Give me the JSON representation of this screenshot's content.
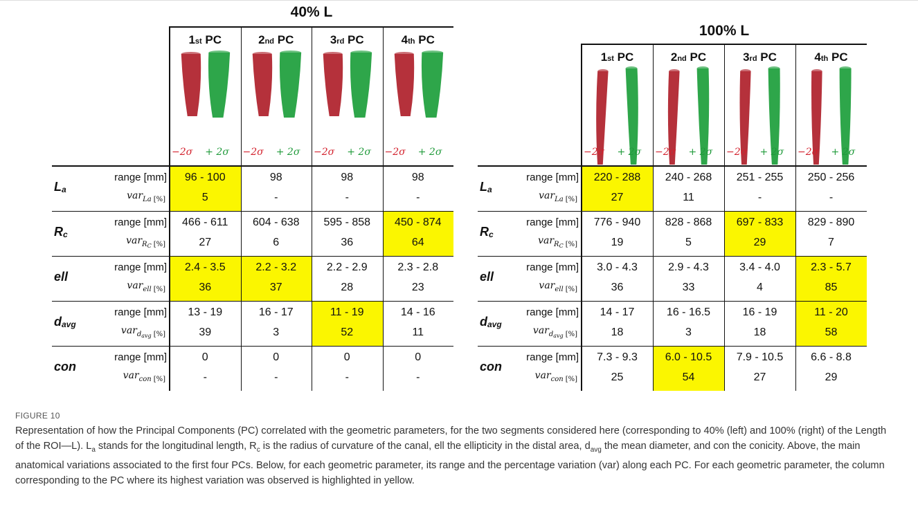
{
  "figure_label": "FIGURE 10",
  "caption": [
    {
      "text": "Representation of how the Principal Components (PC) correlated with the geometric parameters, for the two segments considered here (corresponding to 40% (left) and 100% (right) of the Length of the ROI—L). L"
    },
    {
      "text": "a",
      "sub": true
    },
    {
      "text": " stands for the longitudinal length, R"
    },
    {
      "text": "c",
      "sub": true
    },
    {
      "text": " is the radius of curvature of the canal, ell the ellipticity in the distal area, d"
    },
    {
      "text": "avg",
      "sub": true
    },
    {
      "text": " the mean diameter, and con the conicity. Above, the main anatomical variations associated to the first four PCs. Below, for each geometric parameter, its range and the percentage variation (var) along each PC. For each geometric parameter, the column corresponding to the PC where its highest variation was observed is highlighted in yellow."
    }
  ],
  "tables": [
    {
      "title": "40% L",
      "columns": [
        {
          "ordinal": "1",
          "suffix": "st",
          "label": "PC"
        },
        {
          "ordinal": "2",
          "suffix": "nd",
          "label": "PC"
        },
        {
          "ordinal": "3",
          "suffix": "rd",
          "label": "PC"
        },
        {
          "ordinal": "4",
          "suffix": "th",
          "label": "PC"
        }
      ],
      "sigma": [
        "−2σ",
        "+ 2σ"
      ],
      "parameters": [
        {
          "name": "L",
          "name_sub": "a",
          "range_label": "range [mm]",
          "var_label": {
            "text": "var",
            "sub": "La",
            "unit": "[%]"
          },
          "ranges": [
            "96 - 100",
            "98",
            "98",
            "98"
          ],
          "vars": [
            "5",
            "-",
            "-",
            "-"
          ],
          "highlight_columns": [
            0
          ]
        },
        {
          "name": "R",
          "name_sub": "c",
          "range_label": "range [mm]",
          "var_label": {
            "text": "var",
            "sub": "R",
            "sub2": "C",
            "unit": "[%]"
          },
          "ranges": [
            "466 - 611",
            "604 - 638",
            "595 - 858",
            "450 - 874"
          ],
          "vars": [
            "27",
            "6",
            "36",
            "64"
          ],
          "highlight_columns": [
            3
          ]
        },
        {
          "name": "ell",
          "range_label": "range [mm]",
          "var_label": {
            "text": "var",
            "sub": "ell",
            "unit": "[%]"
          },
          "ranges": [
            "2.4 - 3.5",
            "2.2 - 3.2",
            "2.2 - 2.9",
            "2.3 - 2.8"
          ],
          "vars": [
            "36",
            "37",
            "28",
            "23"
          ],
          "highlight_columns": [
            0,
            1
          ]
        },
        {
          "name": "d",
          "name_sub": "avg",
          "range_label": "range [mm]",
          "var_label": {
            "text": "var",
            "sub": "d",
            "sub2": "avg",
            "unit": "[%]"
          },
          "ranges": [
            "13 - 19",
            "16 - 17",
            "11 - 19",
            "14 - 16"
          ],
          "vars": [
            "39",
            "3",
            "52",
            "11"
          ],
          "highlight_columns": [
            2
          ]
        },
        {
          "name": "con",
          "range_label": "range [mm]",
          "var_label": {
            "text": "var",
            "sub": "con",
            "unit": "[%]"
          },
          "ranges": [
            "0",
            "0",
            "0",
            "0"
          ],
          "vars": [
            "-",
            "-",
            "-",
            "-"
          ],
          "highlight_columns": []
        }
      ]
    },
    {
      "title": "100% L",
      "columns": [
        {
          "ordinal": "1",
          "suffix": "st",
          "label": "PC"
        },
        {
          "ordinal": "2",
          "suffix": "nd",
          "label": "PC"
        },
        {
          "ordinal": "3",
          "suffix": "rd",
          "label": "PC"
        },
        {
          "ordinal": "4",
          "suffix": "th",
          "label": "PC"
        }
      ],
      "sigma": [
        "−2σ",
        "+ 2σ"
      ],
      "parameters": [
        {
          "name": "L",
          "name_sub": "a",
          "range_label": "range [mm]",
          "var_label": {
            "text": "var",
            "sub": "La",
            "unit": "[%]"
          },
          "ranges": [
            "220 - 288",
            "240 - 268",
            "251 - 255",
            "250 - 256"
          ],
          "vars": [
            "27",
            "11",
            "-",
            "-"
          ],
          "highlight_columns": [
            0
          ]
        },
        {
          "name": "R",
          "name_sub": "c",
          "range_label": "range [mm]",
          "var_label": {
            "text": "var",
            "sub": "R",
            "sub2": "C",
            "unit": "[%]"
          },
          "ranges": [
            "776 - 940",
            "828 - 868",
            "697 - 833",
            "829 - 890"
          ],
          "vars": [
            "19",
            "5",
            "29",
            "7"
          ],
          "highlight_columns": [
            2
          ]
        },
        {
          "name": "ell",
          "range_label": "range [mm]",
          "var_label": {
            "text": "var",
            "sub": "ell",
            "unit": "[%]"
          },
          "ranges": [
            "3.0 - 4.3",
            "2.9 - 4.3",
            "3.4 - 4.0",
            "2.3 - 5.7"
          ],
          "vars": [
            "36",
            "33",
            "4",
            "85"
          ],
          "highlight_columns": [
            3
          ]
        },
        {
          "name": "d",
          "name_sub": "avg",
          "range_label": "range [mm]",
          "var_label": {
            "text": "var",
            "sub": "d",
            "sub2": "avg",
            "unit": "[%]"
          },
          "ranges": [
            "14 - 17",
            "16 - 16.5",
            "16 - 19",
            "11 - 20"
          ],
          "vars": [
            "18",
            "3",
            "18",
            "58"
          ],
          "highlight_columns": [
            3
          ]
        },
        {
          "name": "con",
          "range_label": "range [mm]",
          "var_label": {
            "text": "var",
            "sub": "con",
            "unit": "[%]"
          },
          "ranges": [
            "7.3 - 9.3",
            "6.0 - 10.5",
            "7.9 - 10.5",
            "6.6 - 8.8"
          ],
          "vars": [
            "25",
            "54",
            "27",
            "29"
          ],
          "highlight_columns": [
            1
          ]
        }
      ]
    }
  ]
}
